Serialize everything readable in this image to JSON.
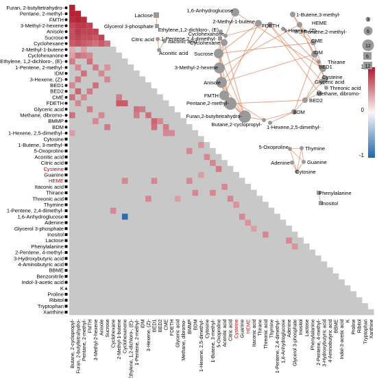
{
  "chart_data": [
    {
      "type": "heatmap",
      "title": "",
      "labels": [
        "Furan, 2-butyltetrahydro-",
        "Pentane, 2-methyl-",
        "FMTH",
        "3-Methyl-2-hexene",
        "Anisole",
        "Sucrose",
        "Cyclohexane",
        "2-Methyl-1-butene",
        "Cyclohexanone",
        "Ethylene, 1,2-dichloro-, (E)-",
        "1-Pentene, 2-methyl-",
        "IDM",
        "3-Hexene, (Z)-",
        "BED1",
        "BED2",
        "CME",
        "FDETH",
        "Glyceric acid",
        "Methane, dibromo-",
        "BMMP",
        "BDM",
        "1-Hexene, 2,5-dimethyl-",
        "Cytosine",
        "1-Butene, 3-methyl-",
        "5-Oxoproline",
        "Aconitic acid",
        "Citric acid",
        "Cysteine",
        "Guanine",
        "HEME",
        "Itaconic acid",
        "Thirane",
        "Threonic acid",
        "Thymine",
        "1-Pentene, 2,4-dimethyl-",
        "1,6-Anhydroglucose",
        "Adenine",
        "Glycerol 3-phosphate",
        "Inositol",
        "Lactose",
        "Phenylalanine",
        "2-Pentene, 4-methyl-",
        "3-Hydroxybutyric acid",
        "4-Aminobutyric acid",
        "BBME",
        "Benzonitrile",
        "Indol-3-acetic acid",
        "K",
        "Proline",
        "Ribitol",
        "Tryptophan",
        "Xanthine"
      ],
      "bottom_labels": [
        "Butane, 2-cyclopropyl-",
        "Furan, 2-butyltetrahydro-",
        "Pentane, 2-methyl-",
        "FMTH",
        "3-Methyl-2-hexene",
        "Anisole",
        "Sucrose",
        "Cyclohexane",
        "2-Methyl-1-butene",
        "Cyclohexanone",
        "Ethylene, 1,2-dichloro-, (E)-",
        "1-Pentene, 2-methyl-",
        "IDM",
        "3-Hexene, (Z)-",
        "BED1",
        "BED2",
        "CME",
        "FDETH",
        "Glyceric acid",
        "Methane, dibromo-",
        "BMMP",
        "BDM",
        "1-Hexene, 2,5-dimethyl-",
        "Cytosine",
        "1-Butene, 3-methyl-",
        "5-Oxoproline",
        "Aconitic acid",
        "Citric acid",
        "Cysteine",
        "Guanine",
        "HEME",
        "Itaconic acid",
        "Thirane",
        "Threonic acid",
        "Thymine",
        "1-Pentene, 2,4-dimethyl-",
        "1,6-Anhydroglucose",
        "Adenine",
        "Glycerol 3-phosphate",
        "Inositol",
        "Lactose",
        "Phenylalanine",
        "2-Pentene, 4-methyl-",
        "3-Hydroxybutyric acid",
        "4-Aminobutyric acid",
        "BBME",
        "Indol-3-acetic acid",
        "K",
        "Proline",
        "Ribitol",
        "Tryptophan",
        "Xanthine"
      ],
      "highlight_labels": [
        "Cysteine",
        "HEME"
      ],
      "highlight_color": "#cc0000",
      "not_significant_color": "#c8c8c8",
      "cells": [
        [
          0,
          0,
          0.95
        ],
        [
          1,
          0,
          0.95
        ],
        [
          1,
          1,
          0.95
        ],
        [
          2,
          0,
          0.9
        ],
        [
          2,
          1,
          0.95
        ],
        [
          2,
          2,
          0.9
        ],
        [
          3,
          0,
          0.8
        ],
        [
          3,
          1,
          0.85
        ],
        [
          3,
          2,
          0.85
        ],
        [
          3,
          3,
          0.8
        ],
        [
          4,
          0,
          0.75
        ],
        [
          4,
          1,
          0.85
        ],
        [
          4,
          2,
          0.8
        ],
        [
          4,
          3,
          0.8
        ],
        [
          4,
          4,
          0.8
        ],
        [
          5,
          0,
          0.75
        ],
        [
          5,
          1,
          0.8
        ],
        [
          5,
          2,
          0.75
        ],
        [
          5,
          3,
          0.75
        ],
        [
          5,
          4,
          0.7
        ],
        [
          5,
          5,
          0.8
        ],
        [
          6,
          0,
          0.7
        ],
        [
          6,
          1,
          0.75
        ],
        [
          6,
          2,
          0.7
        ],
        [
          6,
          3,
          0.65
        ],
        [
          6,
          4,
          0.6
        ],
        [
          6,
          5,
          0.7
        ],
        [
          6,
          6,
          0.6
        ],
        [
          7,
          0,
          0.35
        ],
        [
          7,
          2,
          0.4
        ],
        [
          8,
          0,
          0.4
        ],
        [
          8,
          1,
          0.6
        ],
        [
          8,
          2,
          0.55
        ],
        [
          8,
          3,
          0.5
        ],
        [
          9,
          0,
          0.55
        ],
        [
          9,
          3,
          0.6
        ],
        [
          10,
          1,
          0.5
        ],
        [
          10,
          4,
          0.55
        ],
        [
          10,
          6,
          0.45
        ],
        [
          11,
          2,
          0.6
        ],
        [
          11,
          5,
          0.5
        ],
        [
          12,
          1,
          0.55
        ],
        [
          12,
          6,
          0.5
        ],
        [
          13,
          0,
          0.5
        ],
        [
          13,
          4,
          0.6
        ],
        [
          14,
          1,
          0.65
        ],
        [
          14,
          3,
          0.55
        ],
        [
          15,
          0,
          0.6
        ],
        [
          15,
          2,
          0.5
        ],
        [
          15,
          8,
          0.55
        ],
        [
          16,
          1,
          0.5
        ],
        [
          16,
          8,
          0.7
        ],
        [
          16,
          9,
          0.7
        ],
        [
          17,
          3,
          0.55
        ],
        [
          17,
          11,
          0.6
        ],
        [
          17,
          12,
          0.55
        ],
        [
          18,
          0,
          0.6
        ],
        [
          18,
          5,
          0.5
        ],
        [
          18,
          11,
          0.55
        ],
        [
          18,
          13,
          0.6
        ],
        [
          19,
          4,
          0.5
        ],
        [
          19,
          14,
          0.65
        ],
        [
          19,
          15,
          0.5
        ],
        [
          20,
          6,
          0.55
        ],
        [
          20,
          14,
          0.6
        ],
        [
          20,
          16,
          0.55
        ],
        [
          21,
          0,
          0.4
        ],
        [
          21,
          16,
          0.5
        ],
        [
          21,
          17,
          0.5
        ],
        [
          23,
          22,
          0.45
        ],
        [
          24,
          20,
          0.5
        ],
        [
          25,
          23,
          0.5
        ],
        [
          26,
          24,
          0.5
        ],
        [
          27,
          25,
          0.55
        ],
        [
          28,
          22,
          0.4
        ],
        [
          29,
          9,
          0.5
        ],
        [
          29,
          14,
          0.5
        ],
        [
          29,
          20,
          0.5
        ],
        [
          30,
          26,
          0.5
        ],
        [
          31,
          21,
          0.5
        ],
        [
          31,
          24,
          0.5
        ],
        [
          32,
          13,
          0.5
        ],
        [
          32,
          18,
          0.4
        ],
        [
          32,
          27,
          0.5
        ],
        [
          33,
          28,
          0.45
        ],
        [
          34,
          7,
          0.5
        ],
        [
          35,
          9,
          -0.95
        ],
        [
          35,
          29,
          0.5
        ],
        [
          36,
          30,
          0.45
        ],
        [
          37,
          31,
          0.4
        ],
        [
          38,
          33,
          0.5
        ],
        [
          39,
          37,
          0.5
        ],
        [
          40,
          38,
          0.45
        ]
      ],
      "colorbar": {
        "max": "1",
        "mid": "0",
        "min": "-1",
        "max_value": 1,
        "min_value": -1,
        "colors": [
          "#b2182b",
          "#f7f7f7",
          "#2166ac"
        ]
      }
    },
    {
      "type": "network",
      "size_legend": [
        "3",
        "6",
        "12"
      ],
      "shape_legend": [
        "6",
        "12"
      ],
      "components": [
        {
          "nodes": [
            "Lactose",
            "Glycerol 3-phosphate"
          ],
          "edges": [
            [
              "Lactose",
              "Glycerol 3-phosphate"
            ]
          ]
        },
        {
          "nodes": [
            "Citric acid",
            "Itaconic acid",
            "Aconitic acid"
          ],
          "edges": [
            [
              "Citric acid",
              "Itaconic acid"
            ],
            [
              "Citric acid",
              "Aconitic acid"
            ],
            [
              "Itaconic acid",
              "Aconitic acid"
            ]
          ]
        },
        {
          "nodes": [
            "1,6-Anhydroglucose",
            "2-Methyl-1-butene",
            "FDETH",
            "1-Butene,3-methyl-",
            "HEME",
            "3-Hexene, (Z)-",
            "Ethylene,1,2-dichloro-, (E)",
            "1-Pentene,2,4-dimethyl-",
            "3-Pentene,2-methyl-",
            "Cyclohexanone",
            "Cyclohexane",
            "CME",
            "Sucrose",
            "IDM",
            "3-Methyl-2-hexene",
            "BED1",
            "Thirane",
            "Cysteine",
            "Glyceric acid",
            "Anisole",
            "Threonic acid",
            "Methane, dibromo-",
            "FMTH",
            "BED2",
            "Pentane,2-methyl-",
            "BDM",
            "Furan,2-butyltetrahydro-",
            "Butane,2-cyclopropyl-",
            "1-Hexene,2,5-dimethyl-"
          ],
          "edges": [
            [
              "Furan,2-butyltetrahydro-",
              "Pentane,2-methyl-"
            ],
            [
              "Furan,2-butyltetrahydro-",
              "FMTH"
            ],
            [
              "Furan,2-butyltetrahydro-",
              "Anisole"
            ],
            [
              "Furan,2-butyltetrahydro-",
              "Sucrose"
            ],
            [
              "Furan,2-butyltetrahydro-",
              "Cyclohexane"
            ],
            [
              "Pentane,2-methyl-",
              "FMTH"
            ],
            [
              "Pentane,2-methyl-",
              "3-Methyl-2-hexene"
            ],
            [
              "Pentane,2-methyl-",
              "Anisole"
            ],
            [
              "Pentane,2-methyl-",
              "Sucrose"
            ],
            [
              "FMTH",
              "Anisole"
            ],
            [
              "FMTH",
              "3-Methyl-2-hexene"
            ],
            [
              "Anisole",
              "Sucrose"
            ],
            [
              "Sucrose",
              "Cyclohexane"
            ],
            [
              "Cyclohexane",
              "Cyclohexanone"
            ],
            [
              "FDETH",
              "Cyclohexanone"
            ],
            [
              "FDETH",
              "Glyceric acid"
            ],
            [
              "FDETH",
              "Methane, dibromo-"
            ],
            [
              "HEME",
              "Cysteine"
            ],
            [
              "CME",
              "BED1"
            ],
            [
              "BED1",
              "BED2"
            ],
            [
              "IDM",
              "BDM"
            ],
            [
              "Butane,2-cyclopropyl-",
              "FMTH"
            ],
            [
              "Butane,2-cyclopropyl-",
              "Furan,2-butyltetrahydro-"
            ],
            [
              "Butane,2-cyclopropyl-",
              "BDM"
            ],
            [
              "BDM",
              "1-Hexene,2,5-dimethyl-"
            ],
            [
              "1,6-Anhydroglucose",
              "Cyclohexanone"
            ],
            [
              "2-Methyl-1-butene",
              "FMTH"
            ],
            [
              "1-Butene,3-methyl-",
              "Thirane"
            ],
            [
              "3-Pentene,2-methyl-",
              "CME"
            ],
            [
              "3-Hexene, (Z)-",
              "BED1"
            ],
            [
              "Ethylene,1,2-dichloro-, (E)",
              "Sucrose"
            ],
            [
              "1-Pentene,2,4-dimethyl-",
              "Anisole"
            ],
            [
              "Threonic acid",
              "Glyceric acid"
            ],
            [
              "Methane, dibromo-",
              "BED2"
            ],
            [
              "IDM",
              "Anisole"
            ],
            [
              "CME",
              "Sucrose"
            ],
            [
              "HEME",
              "3-Methyl-2-hexene"
            ],
            [
              "Thirane",
              "Cysteine"
            ],
            [
              "BED2",
              "Pentane,2-methyl-"
            ],
            [
              "2-Methyl-1-butene",
              "Sucrose"
            ],
            [
              "Cyclohexane",
              "3-Methyl-2-hexene"
            ],
            [
              "FDETH",
              "Anisole"
            ],
            [
              "Glyceric acid",
              "BDM"
            ],
            [
              "1,6-Anhydroglucose",
              "BED1"
            ],
            [
              "1-Butene,3-methyl-",
              "CME"
            ]
          ]
        },
        {
          "nodes": [
            "5-Oxoproline",
            "Thymine",
            "Adenine",
            "Guanine",
            "Cytosine"
          ],
          "edges": [
            [
              "5-Oxoproline",
              "Thymine"
            ],
            [
              "5-Oxoproline",
              "Guanine"
            ],
            [
              "Thymine",
              "Guanine"
            ],
            [
              "Thymine",
              "Cytosine"
            ],
            [
              "Adenine",
              "Cytosine"
            ],
            [
              "Guanine",
              "Cytosine"
            ],
            [
              "5-Oxoproline",
              "Cytosine"
            ]
          ]
        },
        {
          "nodes": [
            "Phenylalanine",
            "Inositol"
          ],
          "edges": [
            [
              "Phenylalanine",
              "Inositol"
            ]
          ]
        }
      ]
    }
  ]
}
